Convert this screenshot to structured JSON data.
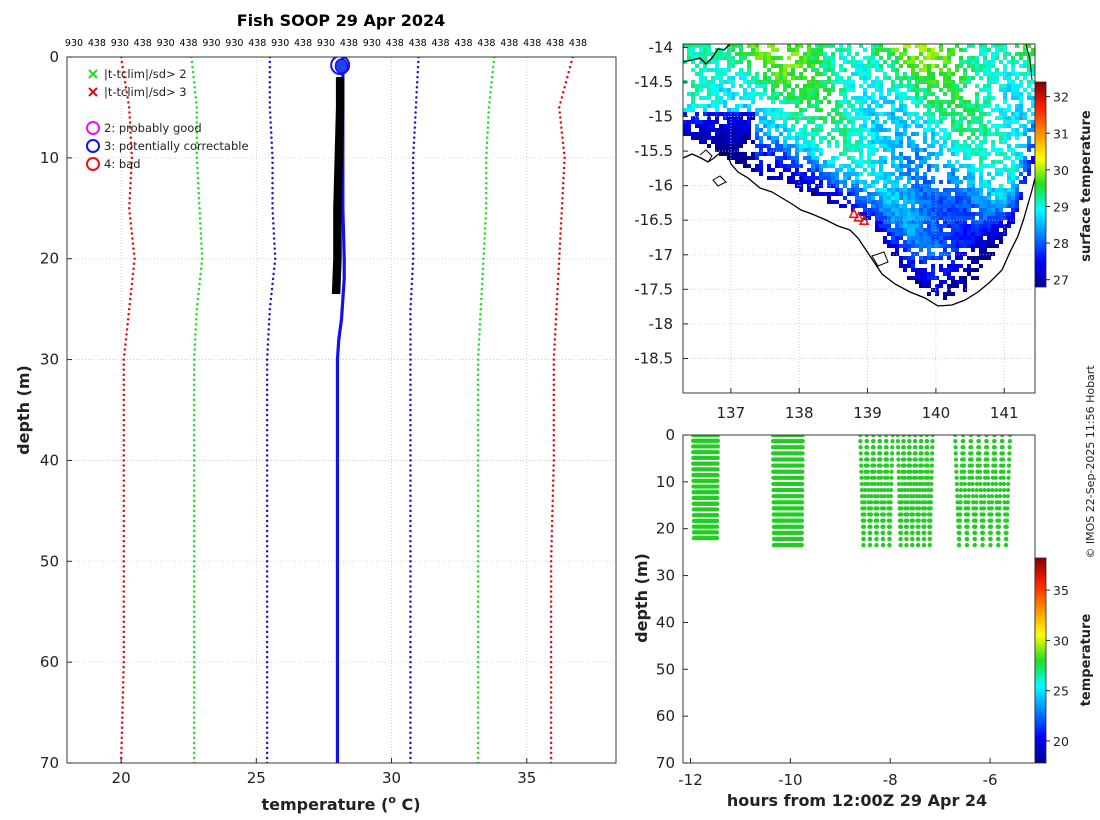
{
  "figure": {
    "credit": "© IMOS 22-Sep-2025 11:56 Hobart"
  },
  "chart_data": [
    {
      "type": "line",
      "panel": "profile",
      "title": "Fish SOOP 29 Apr 2024",
      "xlabel": "temperature (",
      "xlabel_sup": "o",
      "xlabel_tail": " C)",
      "ylabel": "depth (m)",
      "xlim": [
        18,
        38.3
      ],
      "ylim": [
        70,
        0
      ],
      "xticks": [
        20,
        25,
        30,
        35
      ],
      "yticks": [
        0,
        10,
        20,
        30,
        40,
        50,
        60,
        70
      ],
      "top_axis_ticks": [
        "930",
        "438",
        "930",
        "438",
        "930",
        "438",
        "930",
        "930",
        "438",
        "930",
        "438",
        "930",
        "438",
        "930",
        "438",
        "438",
        "438",
        "438",
        "438",
        "438",
        "438",
        "438",
        "438"
      ],
      "legend": [
        {
          "label": "|t-tclim|/sd> 2",
          "marker": "x",
          "color": "#22dd22"
        },
        {
          "label": "|t-tclim|/sd> 3",
          "marker": "x",
          "color": "#dd1111"
        },
        {
          "label": "2: probably good",
          "marker": "o",
          "color": "#ee11ee"
        },
        {
          "label": "3: potentially correctable",
          "marker": "o",
          "color": "#1111ee"
        },
        {
          "label": "4: bad",
          "marker": "o",
          "color": "#ee1111"
        }
      ],
      "series": [
        {
          "name": "clim -3sd",
          "color": "#dd1111",
          "style": "dotted",
          "depth": [
            0,
            5,
            10,
            15,
            20,
            25,
            30,
            40,
            50,
            60,
            70
          ],
          "values": [
            20.0,
            20.3,
            20.4,
            20.3,
            20.5,
            20.3,
            20.1,
            20.1,
            20.1,
            20.1,
            20.0
          ]
        },
        {
          "name": "clim -2sd",
          "color": "#22dd22",
          "style": "dotted",
          "depth": [
            0,
            5,
            10,
            15,
            20,
            25,
            30,
            40,
            50,
            60,
            70
          ],
          "values": [
            22.6,
            22.8,
            22.8,
            22.9,
            23.0,
            22.8,
            22.7,
            22.7,
            22.7,
            22.7,
            22.7
          ]
        },
        {
          "name": "clim -1sd",
          "color": "#1a1acc",
          "style": "dotted",
          "depth": [
            0,
            5,
            10,
            15,
            20,
            25,
            30,
            40,
            50,
            60,
            70
          ],
          "values": [
            25.5,
            25.5,
            25.6,
            25.6,
            25.7,
            25.5,
            25.4,
            25.4,
            25.4,
            25.4,
            25.4
          ]
        },
        {
          "name": "clim +1sd",
          "color": "#1a1acc",
          "style": "dotted",
          "depth": [
            0,
            5,
            10,
            15,
            20,
            25,
            30,
            40,
            50,
            60,
            70
          ],
          "values": [
            31.0,
            30.9,
            30.8,
            30.8,
            30.8,
            30.7,
            30.7,
            30.7,
            30.7,
            30.7,
            30.7
          ]
        },
        {
          "name": "clim +2sd",
          "color": "#22dd22",
          "style": "dotted",
          "depth": [
            0,
            5,
            10,
            15,
            20,
            25,
            30,
            40,
            50,
            60,
            70
          ],
          "values": [
            33.8,
            33.6,
            33.5,
            33.5,
            33.4,
            33.3,
            33.2,
            33.2,
            33.2,
            33.2,
            33.2
          ]
        },
        {
          "name": "clim +3sd",
          "color": "#dd1111",
          "style": "dotted",
          "depth": [
            0,
            5,
            10,
            15,
            20,
            25,
            30,
            40,
            50,
            60,
            70
          ],
          "values": [
            36.7,
            36.2,
            36.4,
            36.3,
            36.2,
            36.1,
            36.0,
            36.0,
            35.9,
            35.9,
            35.9
          ]
        },
        {
          "name": "profile (blue)",
          "color": "#1111ee",
          "style": "solid",
          "depth": [
            0,
            5,
            10,
            15,
            20,
            22,
            24,
            26,
            28,
            30,
            40,
            50,
            60,
            70
          ],
          "values": [
            28.2,
            28.2,
            28.2,
            28.2,
            28.25,
            28.25,
            28.2,
            28.15,
            28.05,
            28.0,
            28.0,
            28.0,
            28.0,
            28.0
          ]
        },
        {
          "name": "drops (black)",
          "color": "#000000",
          "style": "bold",
          "depth": [
            2,
            5,
            10,
            15,
            20,
            23.5
          ],
          "values": [
            28.1,
            28.1,
            28.05,
            28.0,
            28.0,
            27.95
          ]
        }
      ]
    },
    {
      "type": "heatmap",
      "panel": "map",
      "colorbar_label": "surface temperature",
      "xlim": [
        136.3,
        141.45
      ],
      "ylim": [
        -19,
        -13.95
      ],
      "xticks": [
        137,
        138,
        139,
        140,
        141
      ],
      "yticks": [
        -14,
        -14.5,
        -15,
        -15.5,
        -16,
        -16.5,
        -17,
        -17.5,
        -18,
        -18.5
      ],
      "clim": [
        26.8,
        32.4
      ],
      "cbar_ticks": [
        27,
        28,
        29,
        30,
        31,
        32
      ],
      "track": [
        {
          "lon": 138.8,
          "lat": -16.4
        },
        {
          "lon": 138.87,
          "lat": -16.45
        },
        {
          "lon": 138.95,
          "lat": -16.5
        }
      ]
    },
    {
      "type": "scatter",
      "panel": "time-depth",
      "xlabel": "hours from 12:00Z 29 Apr 24",
      "ylabel": "depth (m)",
      "colorbar_label": "temperature",
      "xlim": [
        -12.15,
        -5.1
      ],
      "ylim": [
        70,
        0
      ],
      "xticks": [
        -12,
        -10,
        -8,
        -6
      ],
      "yticks": [
        0,
        10,
        20,
        30,
        40,
        50,
        60,
        70
      ],
      "clim": [
        17.8,
        38.2
      ],
      "cbar_ticks": [
        20,
        25,
        30,
        35
      ],
      "point_color": "#22cc22",
      "groups": [
        {
          "start": -11.95,
          "end": -11.45,
          "drops": 12,
          "max_depth": 22
        },
        {
          "start": -10.35,
          "end": -9.75,
          "drops": 13,
          "max_depth": 23.5
        },
        {
          "start": -8.6,
          "end": -7.95,
          "drops": 5,
          "max_depth": 23.5
        },
        {
          "start": -7.85,
          "end": -7.15,
          "drops": 6,
          "max_depth": 23.5
        },
        {
          "start": -6.7,
          "end": -5.6,
          "drops": 7,
          "max_depth": 23.5
        }
      ]
    }
  ]
}
